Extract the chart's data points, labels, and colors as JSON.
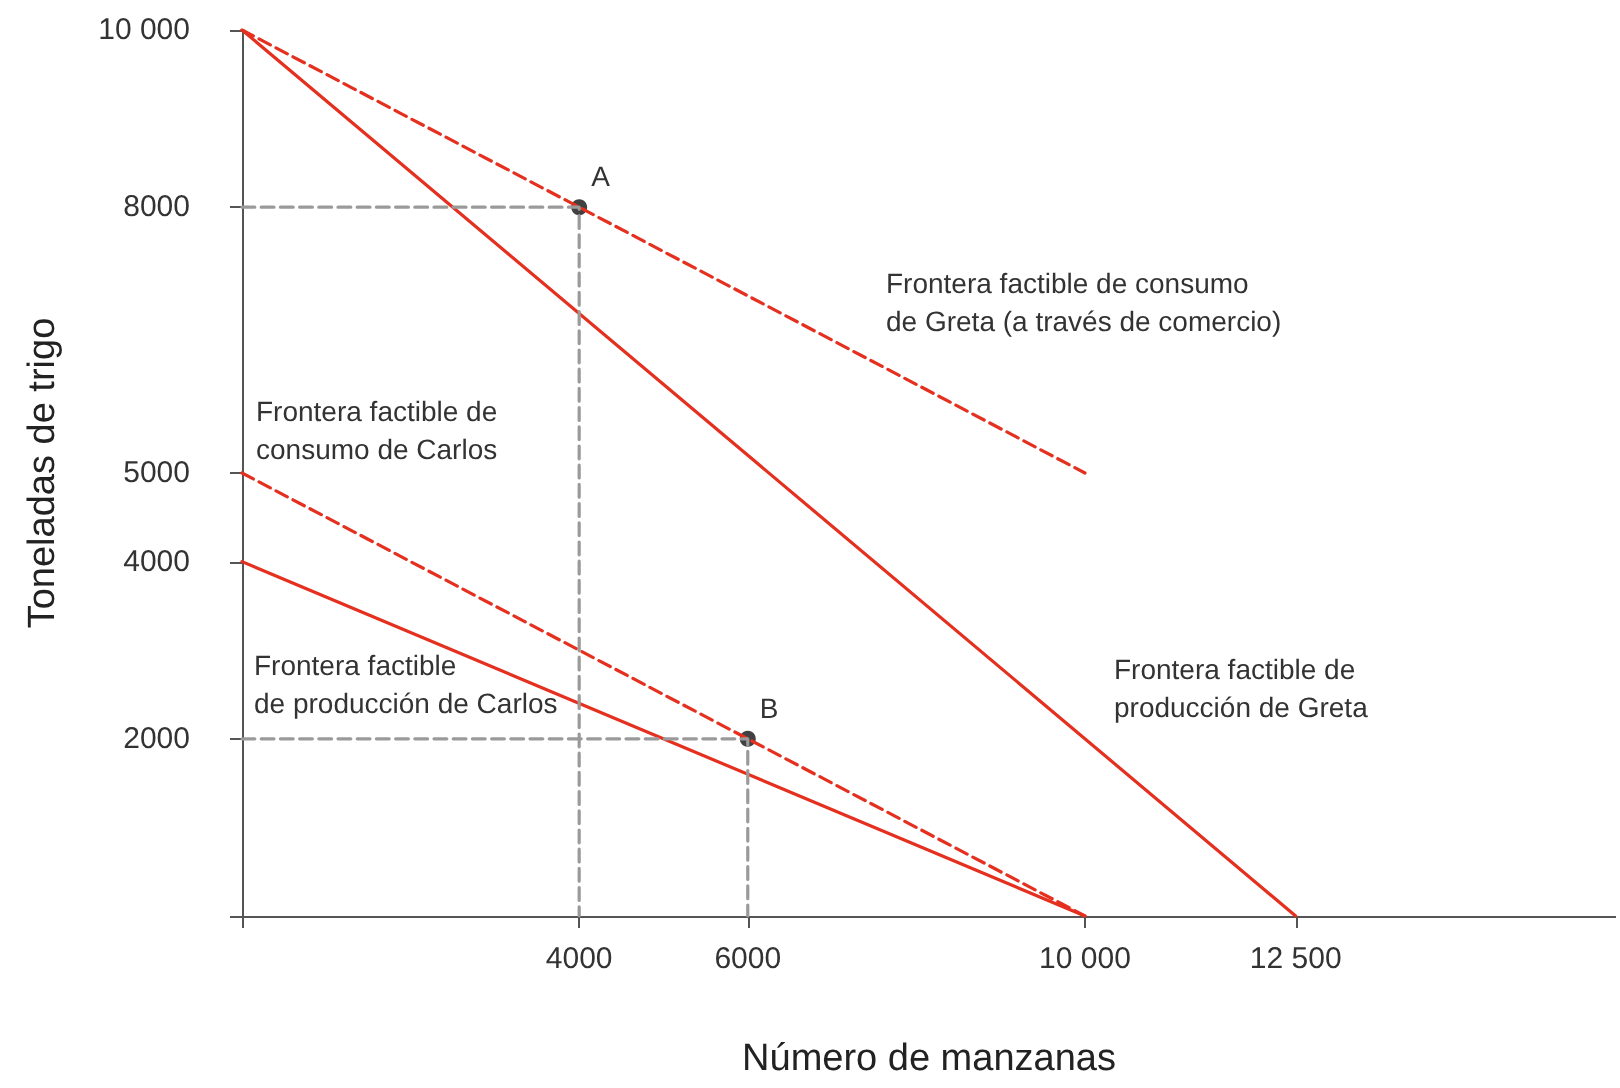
{
  "chart_data": {
    "type": "line",
    "xlabel": "Número de manzanas",
    "ylabel": "Toneladas de trigo",
    "xlim": [
      0,
      16300
    ],
    "xticks": [
      {
        "value": 0,
        "label": null
      },
      4000,
      6000,
      {
        "value": 10000,
        "label": "10 000"
      },
      {
        "value": 12500,
        "label": "12 500"
      }
    ],
    "ylim": [
      0,
      10000
    ],
    "yticks": [
      {
        "value": 0,
        "label": null
      },
      2000,
      4000,
      5000,
      8000,
      {
        "value": 10000,
        "label": "10 000"
      }
    ],
    "grid": false,
    "marker": "none",
    "series": [
      {
        "color": "#e5301f",
        "line_style": "solid",
        "x": [
          0,
          12500
        ],
        "values": [
          10000,
          0
        ]
      },
      {
        "color": "#e5301f",
        "line_style": "dashed",
        "x": [
          0,
          10000
        ],
        "values": [
          10000,
          5000
        ]
      },
      {
        "color": "#e5301f",
        "line_style": "dashed",
        "x": [
          0,
          10000
        ],
        "values": [
          5000,
          0
        ]
      },
      {
        "color": "#e5301f",
        "line_style": "solid",
        "x": [
          0,
          10000
        ],
        "values": [
          4000,
          0
        ]
      },
      {
        "color": "#9a9a9a",
        "line_style": "dashed",
        "x": [
          0,
          4000,
          4000
        ],
        "values": [
          8000,
          8000,
          0
        ]
      },
      {
        "color": "#9a9a9a",
        "line_style": "dashed",
        "x": [
          0,
          6000,
          6000
        ],
        "values": [
          2000,
          2000,
          0
        ]
      },
      {
        "type": "scatter",
        "marker": "circle",
        "color": "#111111",
        "x": [
          4000,
          6000
        ],
        "values": [
          8000,
          2000
        ]
      }
    ],
    "annotations": [
      {
        "text": "A",
        "x": 4000,
        "y": 8000
      },
      {
        "text": "B",
        "x": 6000,
        "y": 2000
      },
      "Frontera factible de consumo\nde Greta (a través de comercio)",
      "Frontera factible de\nconsumo de Carlos",
      "Frontera factible\nde producción de Carlos",
      "Frontera factible de\nproducción de Greta"
    ]
  }
}
